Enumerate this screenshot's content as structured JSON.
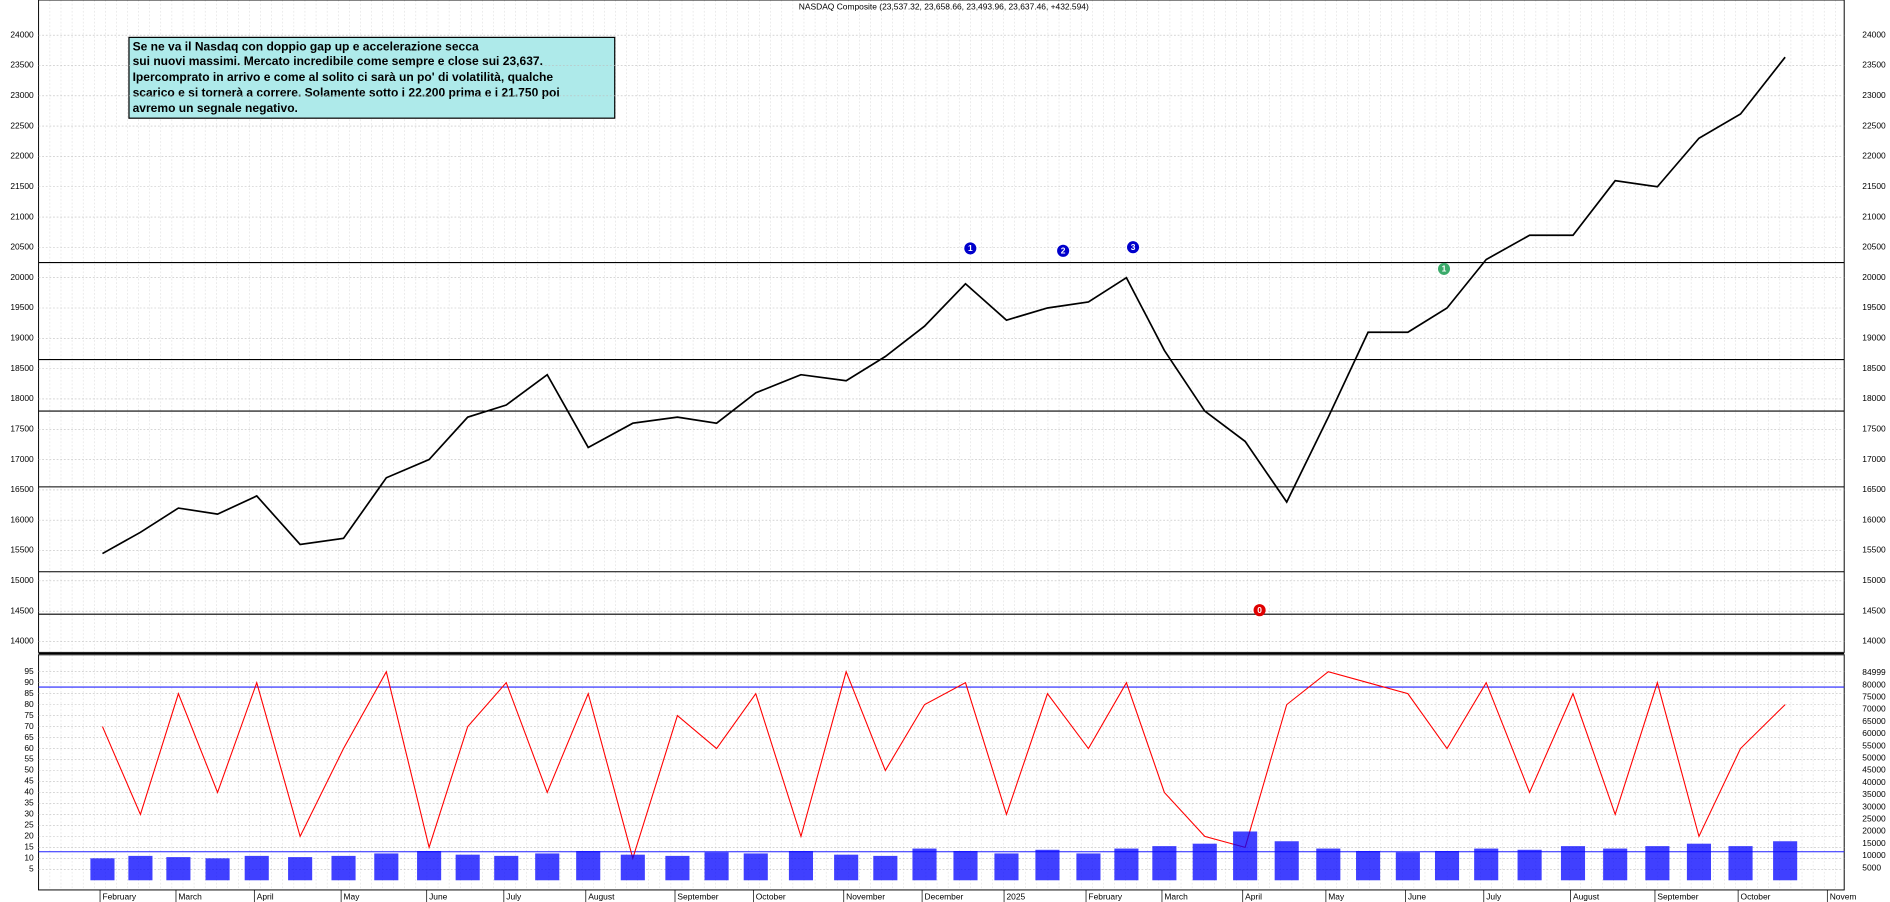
{
  "chart_data": [
    {
      "type": "line",
      "title": "NASDAQ Composite (23,537.32, 23,658.66, 23,493.96, 23,637.46, +432.594)",
      "annotation": [
        "Se ne va il Nasdaq con doppio gap up e accelerazione secca",
        "sui nuovi massimi. Mercato incredibile come sempre e close sui 23,637.",
        "Ipercomprato in arrivo e come al solito ci sarà un po' di volatilità, qualche",
        "scarico e si tornerà a correre. Solamente sotto i 22.200 prima e i 21.750 poi",
        "avremo un segnale negativo."
      ],
      "categories": [
        "February",
        null,
        "March",
        null,
        "April",
        null,
        "May",
        null,
        "June",
        null,
        "July",
        null,
        "August",
        null,
        "September",
        null,
        "October",
        null,
        "November",
        null,
        "December",
        null,
        "2025",
        null,
        "February",
        null,
        "March",
        null,
        "April",
        null,
        "May",
        null,
        "June",
        null,
        "July",
        null,
        "August",
        null,
        "September",
        null,
        "October",
        null,
        "Novem"
      ],
      "series": [
        {
          "color": "#000000",
          "values": [
            15450,
            15800,
            16200,
            16100,
            16400,
            15600,
            15700,
            16700,
            17000,
            17700,
            17900,
            18400,
            17200,
            17600,
            17700,
            17600,
            18100,
            18400,
            18300,
            18700,
            19200,
            19900,
            19300,
            19500,
            19600,
            20000,
            18800,
            17800,
            17300,
            16300,
            17700,
            19100,
            19100,
            19500,
            20300,
            20700,
            20700,
            21600,
            21500,
            22300,
            22700,
            23637,
            null
          ]
        }
      ],
      "hlines": [
        20250,
        18650,
        17800,
        16550,
        15150,
        14450,
        13800
      ],
      "markers": [
        {
          "label": "1",
          "color": "#0000cc"
        },
        {
          "label": "2",
          "color": "#0000cc"
        },
        {
          "label": "3",
          "color": "#0000cc"
        },
        {
          "label": "0",
          "color": "#e00000"
        },
        {
          "label": "1",
          "color": "#3aaa6a"
        }
      ],
      "ylim": [
        13820,
        24580
      ],
      "yticks": [
        14000,
        14500,
        15000,
        15500,
        16000,
        16500,
        17000,
        17500,
        18000,
        18500,
        19000,
        19500,
        20000,
        20500,
        21000,
        21500,
        22000,
        22500,
        23000,
        23500,
        24000
      ],
      "grid": true
    },
    {
      "type": "line",
      "series": [
        {
          "color": "#ff0000",
          "values": [
            70,
            30,
            85,
            40,
            90,
            20,
            60,
            95,
            15,
            70,
            90,
            40,
            85,
            10,
            75,
            60,
            85,
            20,
            95,
            50,
            80,
            90,
            30,
            85,
            60,
            90,
            40,
            20,
            15,
            80,
            95,
            90,
            85,
            60,
            90,
            40,
            85,
            30,
            90,
            20,
            60,
            80,
            null
          ]
        },
        {
          "color": "#0000ff",
          "kind": "bar",
          "axis": "y2",
          "values": [
            9000,
            10000,
            9500,
            9000,
            10000,
            9500,
            10000,
            11000,
            12000,
            10500,
            10000,
            11000,
            12000,
            10500,
            10000,
            11500,
            11000,
            12000,
            10500,
            10000,
            13000,
            12000,
            11000,
            12500,
            11000,
            13000,
            14000,
            15000,
            20000,
            16000,
            13000,
            12000,
            11500,
            12000,
            13000,
            12500,
            14000,
            13000,
            14000,
            15000,
            14000,
            16000,
            null
          ]
        }
      ],
      "hlines": [
        88,
        13
      ],
      "ylim": [
        -4.4,
        102.7
      ],
      "yticks": [
        5,
        10,
        15,
        20,
        25,
        30,
        35,
        40,
        45,
        50,
        55,
        60,
        65,
        70,
        75,
        80,
        85,
        90,
        95
      ],
      "y2lim": [
        -3960,
        92430
      ],
      "y2ticks": [
        84999,
        80000,
        75000,
        70000,
        65000,
        60000,
        55000,
        50000,
        45000,
        40000,
        35000,
        30000,
        25000,
        20000,
        15000,
        10000,
        5000
      ],
      "grid": true
    }
  ]
}
